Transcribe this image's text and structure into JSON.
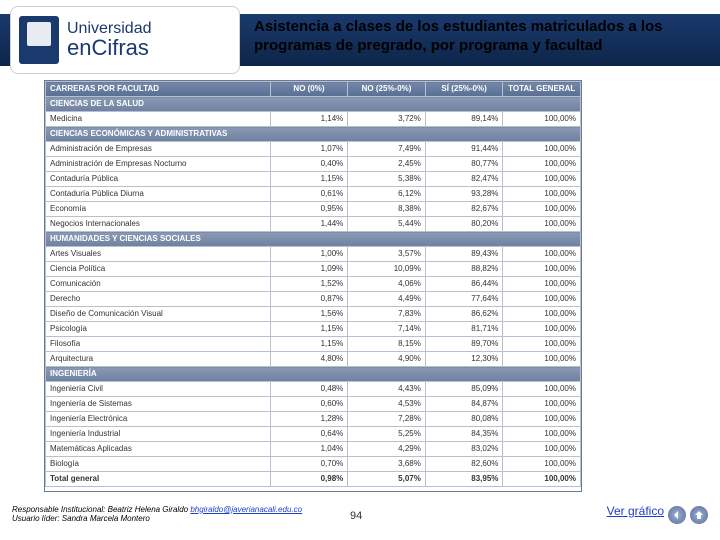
{
  "logo": {
    "line1": "Universidad",
    "line2": "enCifras"
  },
  "title": "Asistencia a clases de los estudiantes matriculados a los programas de pregrado, por programa y facultad",
  "table": {
    "headers": [
      "CARRERAS POR FACULTAD",
      "NO (0%)",
      "NO (25%-0%)",
      "SÍ (25%-0%)",
      "TOTAL GENERAL"
    ],
    "sections": [
      {
        "name": "CIENCIAS DE LA SALUD",
        "rows": [
          [
            "Medicina",
            "1,14%",
            "3,72%",
            "89,14%",
            "100,00%"
          ]
        ]
      },
      {
        "name": "CIENCIAS ECONÓMICAS Y ADMINISTRATIVAS",
        "rows": [
          [
            "Administración de Empresas",
            "1,07%",
            "7,49%",
            "91,44%",
            "100,00%"
          ],
          [
            "Administración de Empresas Nocturno",
            "0,40%",
            "2,45%",
            "80,77%",
            "100,00%"
          ],
          [
            "Contaduría Pública",
            "1,15%",
            "5,38%",
            "82,47%",
            "100,00%"
          ],
          [
            "Contaduría Pública Diurna",
            "0,61%",
            "6,12%",
            "93,28%",
            "100,00%"
          ],
          [
            "Economía",
            "0,95%",
            "8,38%",
            "82,67%",
            "100,00%"
          ],
          [
            "Negocios Internacionales",
            "1,44%",
            "5,44%",
            "80,20%",
            "100,00%"
          ]
        ]
      },
      {
        "name": "HUMANIDADES Y CIENCIAS SOCIALES",
        "rows": [
          [
            "Artes Visuales",
            "1,00%",
            "3,57%",
            "89,43%",
            "100,00%"
          ],
          [
            "Ciencia Política",
            "1,09%",
            "10,09%",
            "88,82%",
            "100,00%"
          ],
          [
            "Comunicación",
            "1,52%",
            "4,06%",
            "86,44%",
            "100,00%"
          ],
          [
            "Derecho",
            "0,87%",
            "4,49%",
            "77,64%",
            "100,00%"
          ],
          [
            "Diseño de Comunicación Visual",
            "1,56%",
            "7,83%",
            "86,62%",
            "100,00%"
          ],
          [
            "Psicología",
            "1,15%",
            "7,14%",
            "81,71%",
            "100,00%"
          ],
          [
            "Filosofía",
            "1,15%",
            "8,15%",
            "89,70%",
            "100,00%"
          ],
          [
            "Arquitectura",
            "4,80%",
            "4,90%",
            "12,30%",
            "100,00%"
          ]
        ]
      },
      {
        "name": "INGENIERÍA",
        "rows": [
          [
            "Ingeniería Civil",
            "0,48%",
            "4,43%",
            "85,09%",
            "100,00%"
          ],
          [
            "Ingeniería de Sistemas",
            "0,60%",
            "4,53%",
            "84,87%",
            "100,00%"
          ],
          [
            "Ingeniería Electrónica",
            "1,28%",
            "7,28%",
            "80,08%",
            "100,00%"
          ],
          [
            "Ingeniería Industrial",
            "0,64%",
            "5,25%",
            "84,35%",
            "100,00%"
          ],
          [
            "Matemáticas Aplicadas",
            "1,04%",
            "4,29%",
            "83,02%",
            "100,00%"
          ],
          [
            "Biología",
            "0,70%",
            "3,68%",
            "82,60%",
            "100,00%"
          ]
        ]
      }
    ],
    "totalRow": [
      "Total general",
      "0,98%",
      "5,07%",
      "83,95%",
      "100,00%"
    ]
  },
  "footer": {
    "line1_prefix": "Responsable Institucional: Beatriz Helena Giraldo ",
    "email": "bhgiraldo@javerianacali.edu.co",
    "line2": "Usuario líder: Sandra Marcela Montero"
  },
  "pageNumber": "94",
  "verGrafico": "Ver gráfico"
}
